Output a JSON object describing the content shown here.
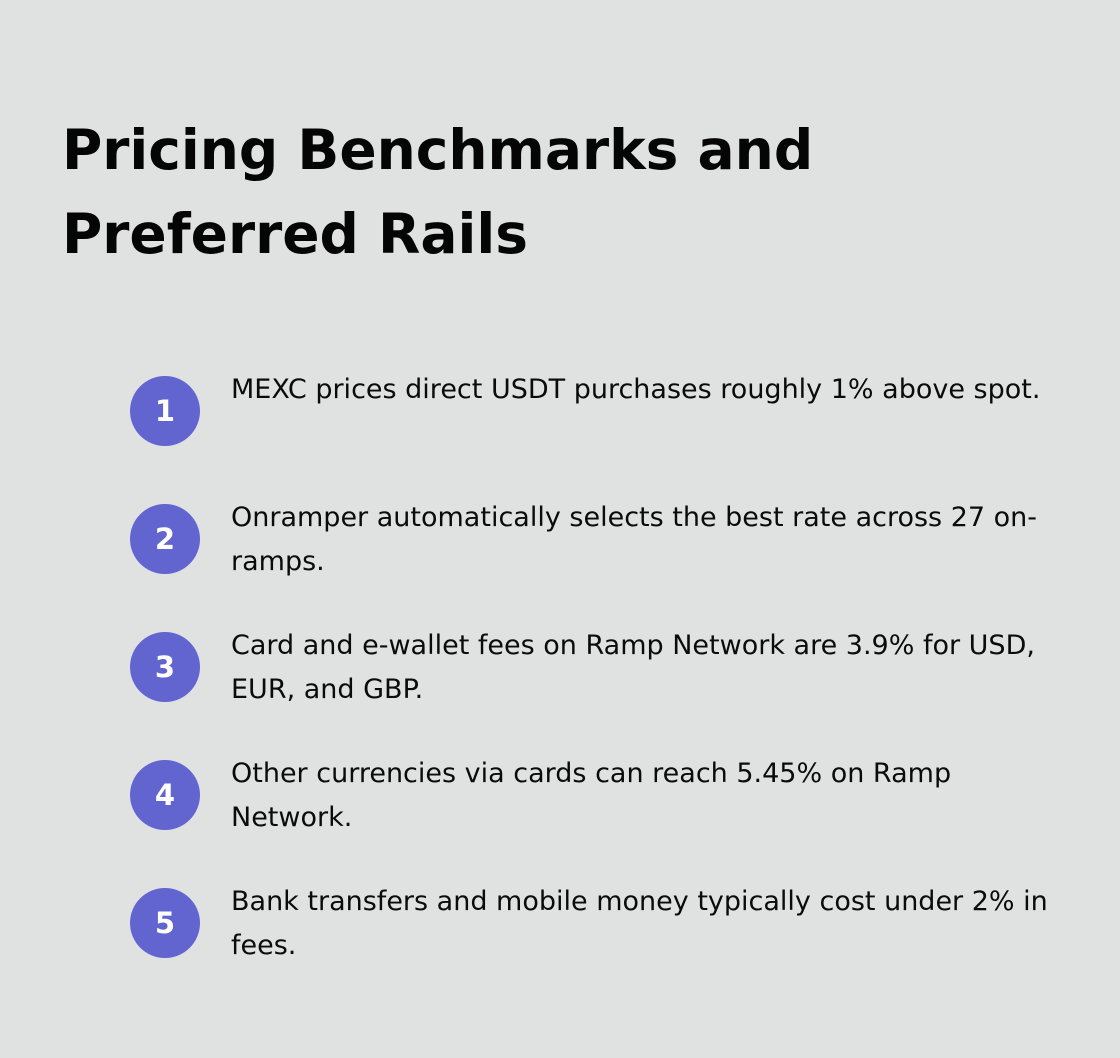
{
  "title": "Pricing Benchmarks and Preferred Rails",
  "accent_color": "#6264d0",
  "items": [
    {
      "number": "1",
      "text": "MEXC prices direct USDT purchases roughly 1% above spot."
    },
    {
      "number": "2",
      "text": "Onramper automatically selects the best rate across 27 on-ramps."
    },
    {
      "number": "3",
      "text": "Card and e-wallet fees on Ramp Network are 3.9% for USD, EUR, and GBP."
    },
    {
      "number": "4",
      "text": "Other currencies via cards can reach 5.45% on Ramp Network."
    },
    {
      "number": "5",
      "text": "Bank transfers and mobile money typically cost under 2% in fees."
    }
  ]
}
